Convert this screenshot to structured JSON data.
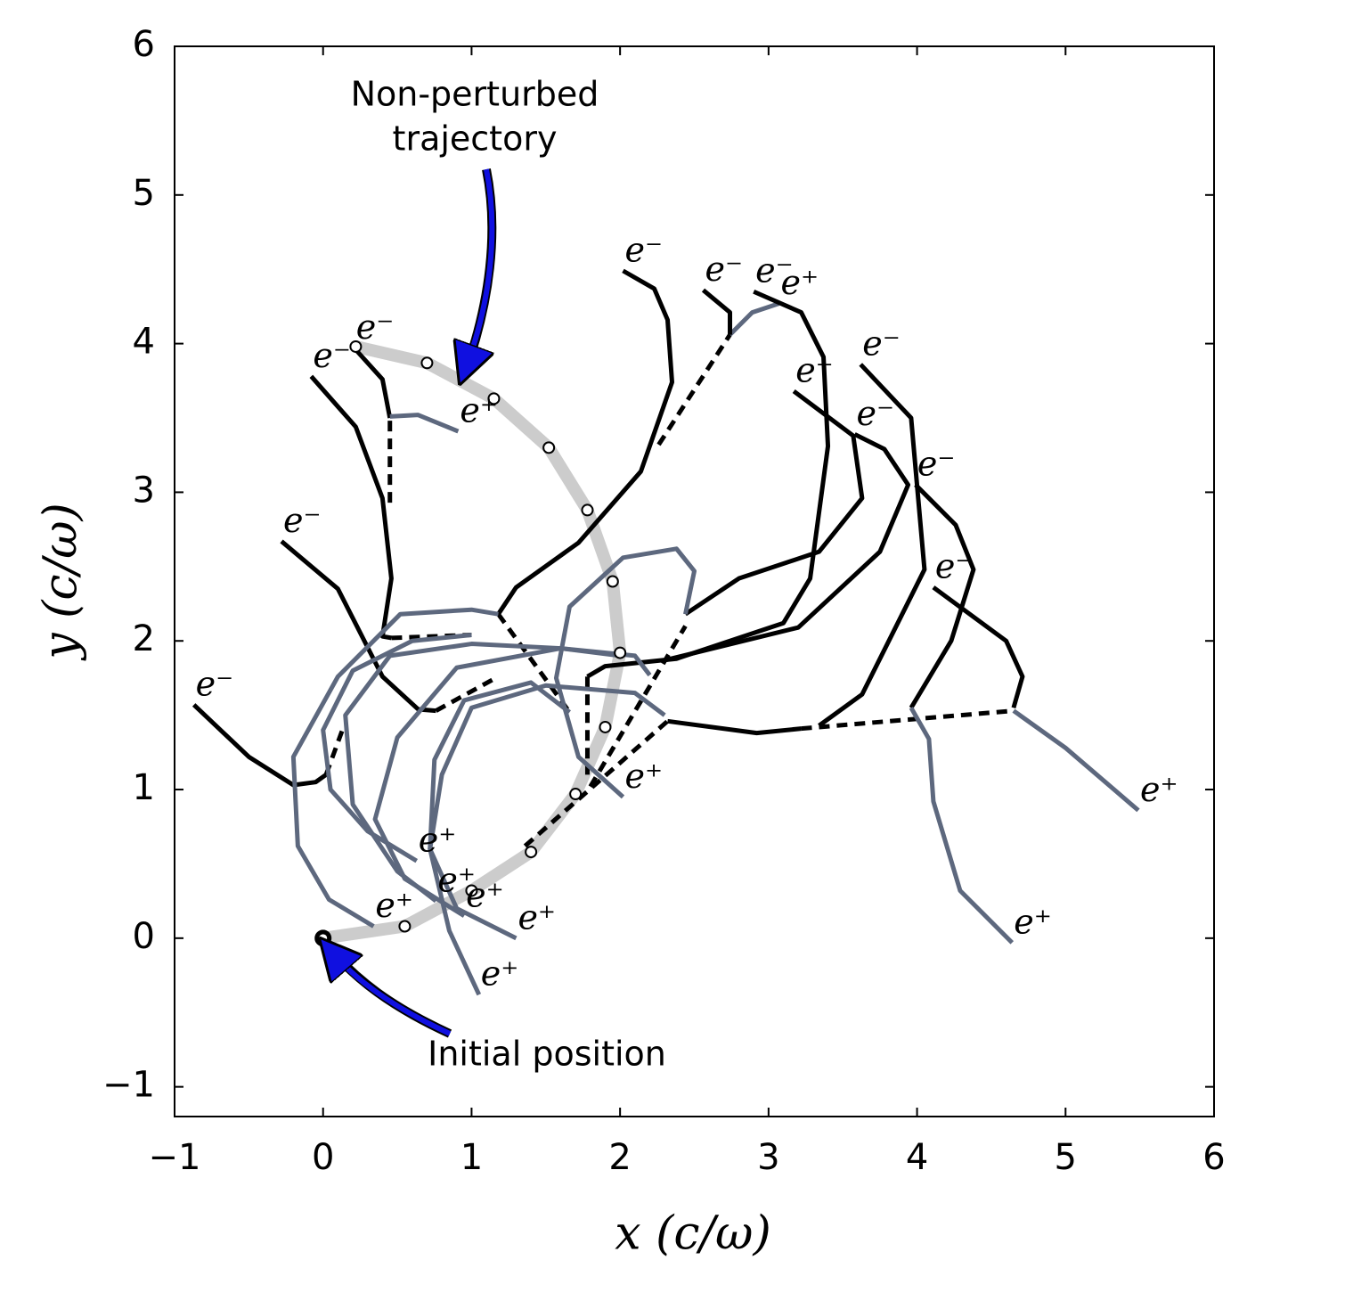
{
  "chart_data": {
    "type": "line",
    "xlabel": "x  (c/ω)",
    "ylabel": "y  (c/ω)",
    "xlim": [
      -1,
      6
    ],
    "ylim": [
      -1.2,
      6
    ],
    "xticks": [
      {
        "value": -1,
        "label": "−1"
      },
      0,
      1,
      2,
      3,
      4,
      5,
      6
    ],
    "yticks": [
      {
        "value": -1,
        "label": "−1"
      },
      0,
      1,
      2,
      3,
      4,
      5,
      6
    ],
    "annotations": [
      {
        "text": [
          "Non-perturbed",
          "trajectory"
        ]
      },
      {
        "text": [
          "Initial position"
        ]
      }
    ],
    "reference": {
      "color": "#cccccc",
      "markers": true,
      "x": [
        0,
        0.55,
        1.0,
        1.4,
        1.7,
        1.9,
        2.0,
        1.95,
        1.78,
        1.52,
        1.15,
        0.7,
        0.22
      ],
      "y": [
        0,
        0.08,
        0.32,
        0.58,
        0.97,
        1.42,
        1.92,
        2.4,
        2.88,
        3.3,
        3.63,
        3.87,
        3.98
      ]
    },
    "links": [
      {
        "x": [
          0.02,
          0.13
        ],
        "y": [
          1.1,
          1.4
        ]
      },
      {
        "x": [
          0.76,
          1.18
        ],
        "y": [
          1.53,
          1.76
        ]
      },
      {
        "x": [
          0.46,
          1.0
        ],
        "y": [
          2.02,
          2.04
        ]
      },
      {
        "x": [
          0.45,
          0.45
        ],
        "y": [
          2.93,
          3.5
        ]
      },
      {
        "x": [
          2.26,
          2.74
        ],
        "y": [
          3.32,
          4.06
        ]
      },
      {
        "x": [
          1.18,
          1.66
        ],
        "y": [
          2.18,
          1.52
        ]
      },
      {
        "x": [
          1.78,
          1.78
        ],
        "y": [
          1.76,
          1.1
        ]
      },
      {
        "x": [
          1.8,
          2.44
        ],
        "y": [
          1.02,
          2.1
        ]
      },
      {
        "x": [
          1.36,
          2.32
        ],
        "y": [
          0.62,
          1.46
        ]
      },
      {
        "x": [
          3.22,
          4.65
        ],
        "y": [
          1.41,
          1.53
        ]
      }
    ],
    "series": [
      {
        "name": "e⁻",
        "color": "#000000",
        "x": [
          0.02,
          -0.05,
          -0.2,
          -0.5,
          -0.87
        ],
        "y": [
          1.1,
          1.05,
          1.03,
          1.22,
          1.57
        ]
      },
      {
        "name": "e⁻",
        "color": "#000000",
        "x": [
          0.76,
          0.64,
          0.4,
          0.1,
          -0.28
        ],
        "y": [
          1.53,
          1.54,
          1.76,
          2.35,
          2.67
        ]
      },
      {
        "name": "e⁻",
        "color": "#000000",
        "x": [
          0.46,
          0.4,
          0.46,
          0.4,
          0.22,
          -0.08
        ],
        "y": [
          2.02,
          2.03,
          2.42,
          2.96,
          3.44,
          3.78
        ]
      },
      {
        "name": "e⁻",
        "color": "#000000",
        "x": [
          0.45,
          0.4,
          0.21
        ],
        "y": [
          3.5,
          3.76,
          3.97
        ]
      },
      {
        "name": "e⁺",
        "color": "#5d687e",
        "x": [
          0.45,
          0.64,
          0.91
        ],
        "y": [
          3.51,
          3.52,
          3.41
        ]
      },
      {
        "name": "e⁻",
        "color": "#000000",
        "x": [
          1.18,
          1.3,
          1.72,
          2.14,
          2.35,
          2.32,
          2.23,
          2.02
        ],
        "y": [
          2.18,
          2.36,
          2.66,
          3.14,
          3.74,
          4.16,
          4.37,
          4.49
        ]
      },
      {
        "name": "e⁺",
        "color": "#5d687e",
        "x": [
          2.74,
          2.89,
          3.07
        ],
        "y": [
          4.06,
          4.21,
          4.27
        ]
      },
      {
        "name": "e⁻",
        "color": "#000000",
        "x": [
          2.74,
          2.74,
          2.56
        ],
        "y": [
          4.06,
          4.21,
          4.36
        ]
      },
      {
        "name": "e⁻",
        "color": "#000000",
        "x": [
          1.78,
          1.9,
          2.38,
          3.1,
          3.28,
          3.4,
          3.37,
          3.22,
          2.9
        ],
        "y": [
          1.76,
          1.83,
          1.88,
          2.12,
          2.42,
          3.31,
          3.91,
          4.21,
          4.35
        ]
      },
      {
        "name": "e⁻",
        "color": "#000000",
        "x": [
          2.44,
          2.8,
          3.34,
          3.63,
          3.57,
          3.17
        ],
        "y": [
          2.18,
          2.42,
          2.6,
          2.96,
          3.38,
          3.68
        ]
      },
      {
        "name": "e⁺",
        "color": "#5d687e",
        "x": [
          2.44,
          2.5,
          2.38,
          2.02,
          1.66,
          1.57,
          1.72,
          2.02
        ],
        "y": [
          2.18,
          2.47,
          2.62,
          2.56,
          2.23,
          1.75,
          1.22,
          0.95
        ]
      },
      {
        "name": "e⁻",
        "color": "#000000",
        "x": [
          3.34,
          3.63,
          4.05,
          3.96,
          3.62
        ],
        "y": [
          1.43,
          1.64,
          2.48,
          3.5,
          3.86
        ]
      },
      {
        "name": "e⁻",
        "color": "#000000",
        "x": [
          2.3,
          3.2,
          3.75,
          3.94,
          3.78,
          3.58
        ],
        "y": [
          1.87,
          2.09,
          2.6,
          3.05,
          3.29,
          3.39
        ]
      },
      {
        "name": "e⁻",
        "color": "#000000",
        "x": [
          3.96,
          4.23,
          4.38,
          4.26,
          3.99
        ],
        "y": [
          1.55,
          2.0,
          2.48,
          2.78,
          3.05
        ]
      },
      {
        "name": "e⁻",
        "color": "#000000",
        "x": [
          4.65,
          4.71,
          4.6,
          4.11
        ],
        "y": [
          1.55,
          1.76,
          2.0,
          2.36
        ]
      },
      {
        "color": "#000000",
        "x": [
          2.32,
          2.92,
          3.22
        ],
        "y": [
          1.46,
          1.38,
          1.41
        ]
      },
      {
        "name": "e⁺",
        "color": "#5d687e",
        "x": [
          4.65,
          5.0,
          5.49
        ],
        "y": [
          1.53,
          1.28,
          0.86
        ]
      },
      {
        "name": "e⁺",
        "color": "#5d687e",
        "x": [
          3.96,
          4.08,
          4.11,
          4.29,
          4.64
        ],
        "y": [
          1.55,
          1.34,
          0.92,
          0.32,
          -0.03
        ]
      },
      {
        "name": "e⁺",
        "color": "#5d687e",
        "x": [
          1.18,
          1.0,
          0.52,
          0.1,
          -0.2,
          -0.17,
          0.04,
          0.34
        ],
        "y": [
          2.18,
          2.21,
          2.18,
          1.76,
          1.22,
          0.62,
          0.26,
          0.08
        ]
      },
      {
        "name": "e⁺",
        "color": "#5d687e",
        "x": [
          1.0,
          0.6,
          0.2,
          0.0,
          0.05,
          0.3,
          0.63
        ],
        "y": [
          2.04,
          2.0,
          1.8,
          1.4,
          1.0,
          0.72,
          0.52
        ]
      },
      {
        "name": "e⁺",
        "color": "#5d687e",
        "x": [
          2.0,
          1.6,
          1.0,
          0.45,
          0.15,
          0.2,
          0.5,
          0.76
        ],
        "y": [
          1.9,
          1.95,
          1.98,
          1.9,
          1.5,
          0.9,
          0.45,
          0.25
        ]
      },
      {
        "name": "e⁺",
        "color": "#5d687e",
        "x": [
          2.2,
          2.1,
          1.6,
          0.9,
          0.5,
          0.35,
          0.55,
          0.95
        ],
        "y": [
          1.77,
          1.9,
          1.95,
          1.82,
          1.35,
          0.8,
          0.4,
          0.15
        ]
      },
      {
        "name": "e⁺",
        "color": "#5d687e",
        "x": [
          2.3,
          2.1,
          1.5,
          1.0,
          0.8,
          0.72,
          0.9,
          1.3
        ],
        "y": [
          1.5,
          1.65,
          1.7,
          1.55,
          1.1,
          0.6,
          0.2,
          0.0
        ]
      },
      {
        "name": "e⁺",
        "color": "#5d687e",
        "x": [
          1.66,
          1.4,
          0.95,
          0.75,
          0.72,
          0.85,
          1.05
        ],
        "y": [
          1.52,
          1.72,
          1.6,
          1.2,
          0.6,
          0.05,
          -0.38
        ]
      }
    ]
  }
}
